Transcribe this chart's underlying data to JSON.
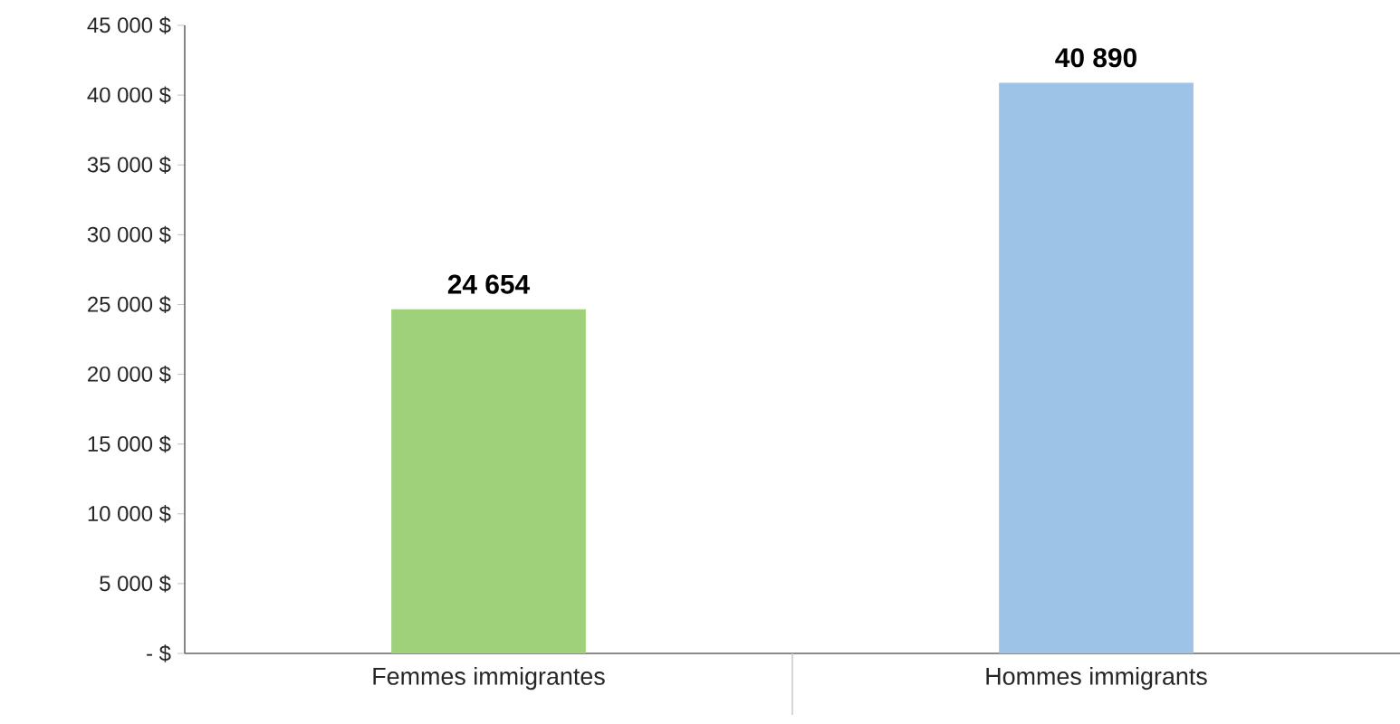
{
  "chart_data": {
    "type": "bar",
    "categories": [
      "Femmes immigrantes",
      "Hommes immigrants"
    ],
    "values": [
      24654,
      40890
    ],
    "colors": [
      "#9fd17a",
      "#9dc3e6"
    ],
    "value_labels": [
      "24 654",
      "40 890"
    ],
    "ylim": [
      0,
      45000
    ],
    "yticks": [
      {
        "value": 0,
        "label": "-  $"
      },
      {
        "value": 5000,
        "label": "5 000 $"
      },
      {
        "value": 10000,
        "label": "10 000 $"
      },
      {
        "value": 15000,
        "label": "15 000 $"
      },
      {
        "value": 20000,
        "label": "20 000 $"
      },
      {
        "value": 25000,
        "label": "25 000 $"
      },
      {
        "value": 30000,
        "label": "30 000 $"
      },
      {
        "value": 35000,
        "label": "35 000 $"
      },
      {
        "value": 40000,
        "label": "40 000 $"
      },
      {
        "value": 45000,
        "label": "45 000 $"
      }
    ],
    "grid": false
  }
}
